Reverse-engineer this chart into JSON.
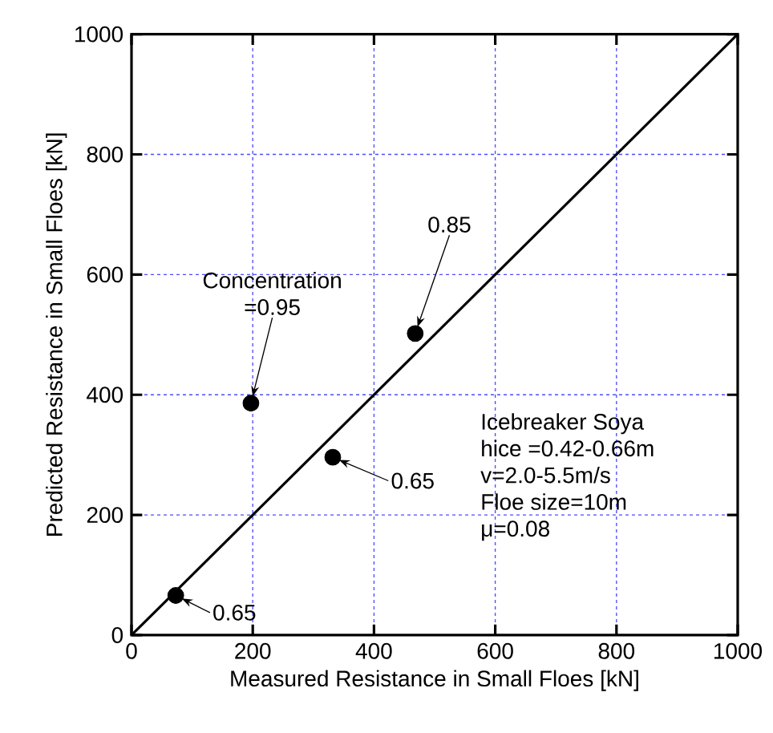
{
  "chart_data": {
    "type": "scatter",
    "xlabel": "Measured Resistance in Small Floes [kN]",
    "ylabel": "Predicted Resistance in Small Floes [kN]",
    "xlim": [
      0,
      1000
    ],
    "ylim": [
      0,
      1000
    ],
    "xticks": [
      0,
      200,
      400,
      600,
      800,
      1000
    ],
    "yticks": [
      0,
      200,
      400,
      600,
      800,
      1000
    ],
    "grid": true,
    "marker": "circle",
    "series": [
      {
        "type": "line",
        "color": "#000000",
        "marker": "none",
        "x": [
          0,
          1000
        ],
        "values": [
          0,
          1000
        ]
      },
      {
        "color": "#000000",
        "x": [
          73,
          197,
          332,
          468
        ],
        "values": [
          66,
          386,
          296,
          502
        ]
      }
    ],
    "annotations": [
      {
        "text": "0.65",
        "x": 73,
        "y": 66
      },
      {
        "text": "Concentration =0.95",
        "x": 197,
        "y": 386
      },
      {
        "text": "0.65",
        "x": 332,
        "y": 296
      },
      {
        "text": "0.85",
        "x": 468,
        "y": 502
      },
      "Icebreaker Soya",
      "hice =0.42-0.66m",
      "v=2.0-5.5m/s",
      "Floe size=10m",
      "μ=0.08"
    ]
  }
}
